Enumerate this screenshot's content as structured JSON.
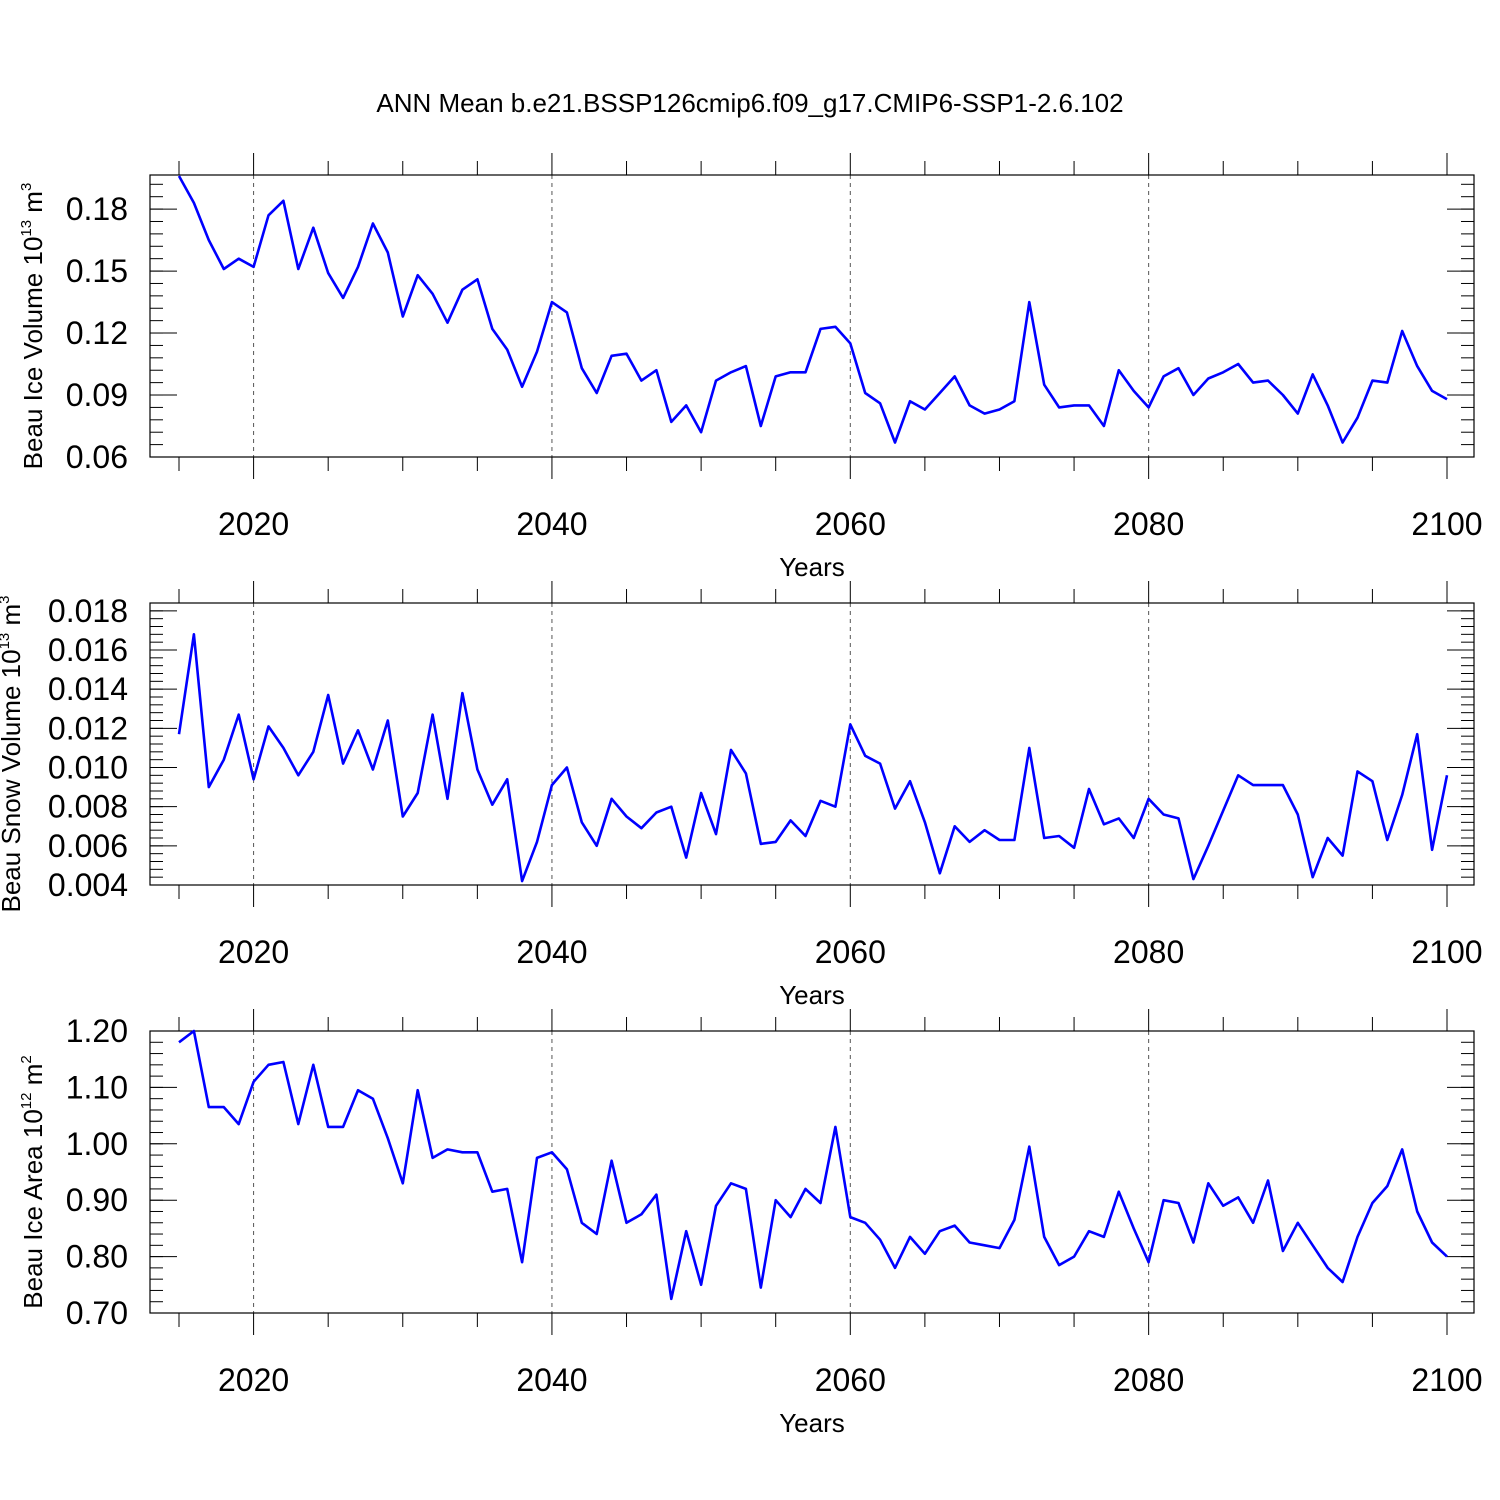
{
  "title": "ANN Mean b.e21.BSSP126cmip6.f09_g17.CMIP6-SSP1-2.6.102",
  "series_color": "#0000ff",
  "chart_data": [
    {
      "type": "line",
      "xlabel": "Years",
      "ylabel": {
        "main": "Beau Ice Volume 10",
        "sup": "13",
        "unit": " m",
        "unit_sup": "3"
      },
      "xlim": [
        2015,
        2100
      ],
      "ylim": [
        0.06,
        0.1965
      ],
      "xticks": [
        2020,
        2040,
        2060,
        2080,
        2100
      ],
      "xtick_labels": [
        "2020",
        "2040",
        "2060",
        "2080",
        "2100"
      ],
      "yticks": [
        0.06,
        0.09,
        0.12,
        0.15,
        0.18
      ],
      "ytick_labels": [
        "0.06",
        "0.09",
        "0.12",
        "0.15",
        "0.18"
      ],
      "grid_x": true,
      "x": [
        2015,
        2016,
        2017,
        2018,
        2019,
        2020,
        2021,
        2022,
        2023,
        2024,
        2025,
        2026,
        2027,
        2028,
        2029,
        2030,
        2031,
        2032,
        2033,
        2034,
        2035,
        2036,
        2037,
        2038,
        2039,
        2040,
        2041,
        2042,
        2043,
        2044,
        2045,
        2046,
        2047,
        2048,
        2049,
        2050,
        2051,
        2052,
        2053,
        2054,
        2055,
        2056,
        2057,
        2058,
        2059,
        2060,
        2061,
        2062,
        2063,
        2064,
        2065,
        2066,
        2067,
        2068,
        2069,
        2070,
        2071,
        2072,
        2073,
        2074,
        2075,
        2076,
        2077,
        2078,
        2079,
        2080,
        2081,
        2082,
        2083,
        2084,
        2085,
        2086,
        2087,
        2088,
        2089,
        2090,
        2091,
        2092,
        2093,
        2094,
        2095,
        2096,
        2097,
        2098,
        2099,
        2100
      ],
      "y": [
        0.196,
        0.183,
        0.165,
        0.151,
        0.156,
        0.152,
        0.177,
        0.184,
        0.151,
        0.171,
        0.149,
        0.137,
        0.152,
        0.173,
        0.159,
        0.128,
        0.148,
        0.139,
        0.125,
        0.141,
        0.146,
        0.122,
        0.112,
        0.094,
        0.111,
        0.135,
        0.13,
        0.103,
        0.091,
        0.109,
        0.11,
        0.097,
        0.102,
        0.077,
        0.085,
        0.072,
        0.097,
        0.101,
        0.104,
        0.075,
        0.099,
        0.101,
        0.101,
        0.122,
        0.123,
        0.115,
        0.091,
        0.086,
        0.067,
        0.087,
        0.083,
        0.091,
        0.099,
        0.085,
        0.081,
        0.083,
        0.087,
        0.135,
        0.095,
        0.084,
        0.085,
        0.085,
        0.075,
        0.102,
        0.092,
        0.084,
        0.099,
        0.103,
        0.09,
        0.098,
        0.101,
        0.105,
        0.096,
        0.097,
        0.09,
        0.081,
        0.1,
        0.085,
        0.067,
        0.079,
        0.097,
        0.096,
        0.121,
        0.104,
        0.092,
        0.088
      ]
    },
    {
      "type": "line",
      "xlabel": "Years",
      "ylabel": {
        "main": "Beau Snow Volume 10",
        "sup": "13",
        "unit": " m",
        "unit_sup": "3"
      },
      "xlim": [
        2015,
        2100
      ],
      "ylim": [
        0.004,
        0.0184
      ],
      "xticks": [
        2020,
        2040,
        2060,
        2080,
        2100
      ],
      "xtick_labels": [
        "2020",
        "2040",
        "2060",
        "2080",
        "2100"
      ],
      "yticks": [
        0.004,
        0.006,
        0.008,
        0.01,
        0.012,
        0.014,
        0.016,
        0.018
      ],
      "ytick_labels": [
        "0.004",
        "0.006",
        "0.008",
        "0.010",
        "0.012",
        "0.014",
        "0.016",
        "0.018"
      ],
      "grid_x": true,
      "x": [
        2015,
        2016,
        2017,
        2018,
        2019,
        2020,
        2021,
        2022,
        2023,
        2024,
        2025,
        2026,
        2027,
        2028,
        2029,
        2030,
        2031,
        2032,
        2033,
        2034,
        2035,
        2036,
        2037,
        2038,
        2039,
        2040,
        2041,
        2042,
        2043,
        2044,
        2045,
        2046,
        2047,
        2048,
        2049,
        2050,
        2051,
        2052,
        2053,
        2054,
        2055,
        2056,
        2057,
        2058,
        2059,
        2060,
        2061,
        2062,
        2063,
        2064,
        2065,
        2066,
        2067,
        2068,
        2069,
        2070,
        2071,
        2072,
        2073,
        2074,
        2075,
        2076,
        2077,
        2078,
        2079,
        2080,
        2081,
        2082,
        2083,
        2084,
        2085,
        2086,
        2087,
        2088,
        2089,
        2090,
        2091,
        2092,
        2093,
        2094,
        2095,
        2096,
        2097,
        2098,
        2099,
        2100
      ],
      "y": [
        0.0117,
        0.0168,
        0.009,
        0.0104,
        0.0127,
        0.0094,
        0.0121,
        0.011,
        0.0096,
        0.0108,
        0.0137,
        0.0102,
        0.0119,
        0.0099,
        0.0124,
        0.0075,
        0.0087,
        0.0127,
        0.0084,
        0.0138,
        0.0099,
        0.0081,
        0.0094,
        0.0042,
        0.0062,
        0.0091,
        0.01,
        0.0072,
        0.006,
        0.0084,
        0.0075,
        0.0069,
        0.0077,
        0.008,
        0.0054,
        0.0087,
        0.0066,
        0.0109,
        0.0097,
        0.0061,
        0.0062,
        0.0073,
        0.0065,
        0.0083,
        0.008,
        0.0122,
        0.0106,
        0.0102,
        0.0079,
        0.0093,
        0.0072,
        0.0046,
        0.007,
        0.0062,
        0.0068,
        0.0063,
        0.0063,
        0.011,
        0.0064,
        0.0065,
        0.0059,
        0.0089,
        0.0071,
        0.0074,
        0.0064,
        0.0084,
        0.0076,
        0.0074,
        0.0043,
        0.006,
        0.0078,
        0.0096,
        0.0091,
        0.0091,
        0.0091,
        0.0076,
        0.0044,
        0.0064,
        0.0055,
        0.0098,
        0.0093,
        0.0063,
        0.0086,
        0.0117,
        0.0058,
        0.0096
      ]
    },
    {
      "type": "line",
      "xlabel": "Years",
      "ylabel": {
        "main": "Beau Ice Area 10",
        "sup": "12",
        "unit": " m",
        "unit_sup": "2"
      },
      "xlim": [
        2015,
        2100
      ],
      "ylim": [
        0.7,
        1.2
      ],
      "xticks": [
        2020,
        2040,
        2060,
        2080,
        2100
      ],
      "xtick_labels": [
        "2020",
        "2040",
        "2060",
        "2080",
        "2100"
      ],
      "yticks": [
        0.7,
        0.8,
        0.9,
        1.0,
        1.1,
        1.2
      ],
      "ytick_labels": [
        "0.70",
        "0.80",
        "0.90",
        "1.00",
        "1.10",
        "1.20"
      ],
      "grid_x": true,
      "x": [
        2015,
        2016,
        2017,
        2018,
        2019,
        2020,
        2021,
        2022,
        2023,
        2024,
        2025,
        2026,
        2027,
        2028,
        2029,
        2030,
        2031,
        2032,
        2033,
        2034,
        2035,
        2036,
        2037,
        2038,
        2039,
        2040,
        2041,
        2042,
        2043,
        2044,
        2045,
        2046,
        2047,
        2048,
        2049,
        2050,
        2051,
        2052,
        2053,
        2054,
        2055,
        2056,
        2057,
        2058,
        2059,
        2060,
        2061,
        2062,
        2063,
        2064,
        2065,
        2066,
        2067,
        2068,
        2069,
        2070,
        2071,
        2072,
        2073,
        2074,
        2075,
        2076,
        2077,
        2078,
        2079,
        2080,
        2081,
        2082,
        2083,
        2084,
        2085,
        2086,
        2087,
        2088,
        2089,
        2090,
        2091,
        2092,
        2093,
        2094,
        2095,
        2096,
        2097,
        2098,
        2099,
        2100
      ],
      "y": [
        1.18,
        1.2,
        1.065,
        1.065,
        1.035,
        1.11,
        1.14,
        1.145,
        1.035,
        1.14,
        1.03,
        1.03,
        1.095,
        1.08,
        1.01,
        0.93,
        1.095,
        0.975,
        0.99,
        0.985,
        0.985,
        0.915,
        0.92,
        0.79,
        0.975,
        0.985,
        0.955,
        0.86,
        0.84,
        0.97,
        0.86,
        0.875,
        0.91,
        0.725,
        0.845,
        0.75,
        0.89,
        0.93,
        0.92,
        0.745,
        0.9,
        0.87,
        0.92,
        0.895,
        1.03,
        0.87,
        0.86,
        0.83,
        0.78,
        0.835,
        0.805,
        0.845,
        0.855,
        0.825,
        0.82,
        0.815,
        0.865,
        0.995,
        0.835,
        0.785,
        0.8,
        0.845,
        0.835,
        0.915,
        0.85,
        0.79,
        0.9,
        0.895,
        0.825,
        0.93,
        0.89,
        0.905,
        0.86,
        0.935,
        0.81,
        0.86,
        0.82,
        0.78,
        0.755,
        0.835,
        0.895,
        0.925,
        0.99,
        0.88,
        0.825,
        0.8
      ]
    }
  ]
}
